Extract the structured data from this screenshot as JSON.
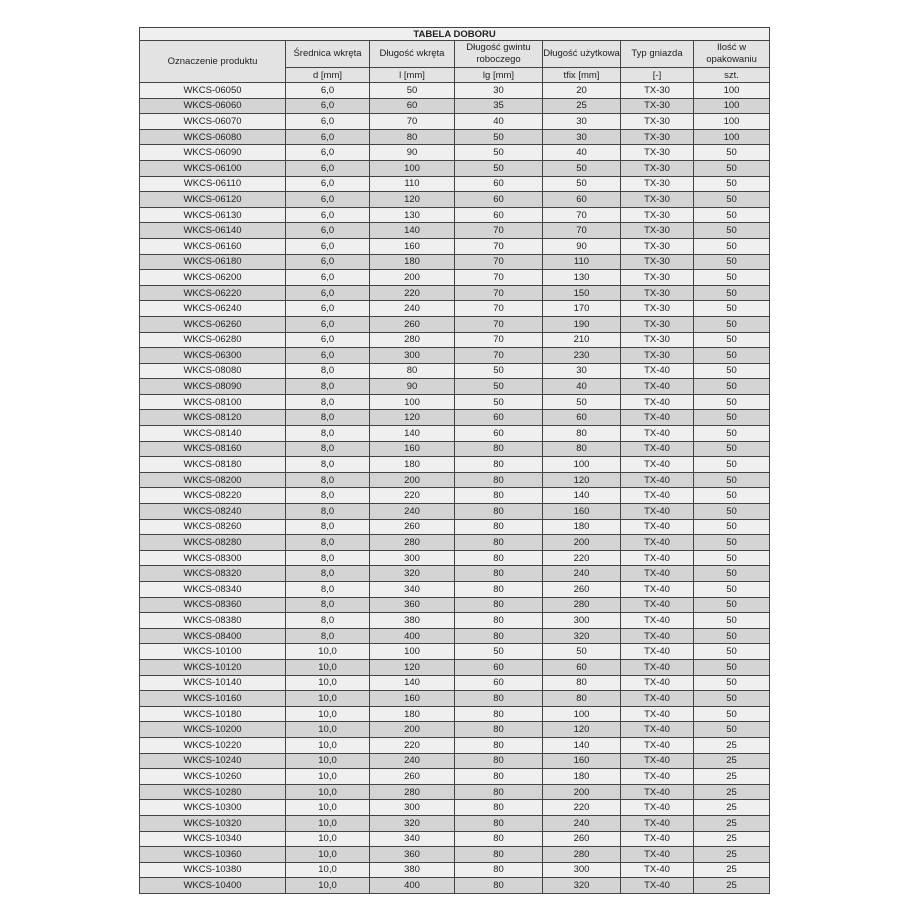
{
  "table": {
    "title": "TABELA DOBORU",
    "headers": [
      "Oznaczenie produktu",
      "Średnica wkręta",
      "Długość wkręta",
      "Długość gwintu roboczego",
      "Długość użytkowa",
      "Typ gniazda",
      "Ilość w opakowaniu"
    ],
    "units": [
      "d [mm]",
      "l [mm]",
      "lg [mm]",
      "tfix [mm]",
      "[-]",
      "szt."
    ],
    "rows": [
      [
        "WKCS-06050",
        "6,0",
        "50",
        "30",
        "20",
        "TX-30",
        "100"
      ],
      [
        "WKCS-06060",
        "6,0",
        "60",
        "35",
        "25",
        "TX-30",
        "100"
      ],
      [
        "WKCS-06070",
        "6,0",
        "70",
        "40",
        "30",
        "TX-30",
        "100"
      ],
      [
        "WKCS-06080",
        "6,0",
        "80",
        "50",
        "30",
        "TX-30",
        "100"
      ],
      [
        "WKCS-06090",
        "6,0",
        "90",
        "50",
        "40",
        "TX-30",
        "50"
      ],
      [
        "WKCS-06100",
        "6,0",
        "100",
        "50",
        "50",
        "TX-30",
        "50"
      ],
      [
        "WKCS-06110",
        "6,0",
        "110",
        "60",
        "50",
        "TX-30",
        "50"
      ],
      [
        "WKCS-06120",
        "6,0",
        "120",
        "60",
        "60",
        "TX-30",
        "50"
      ],
      [
        "WKCS-06130",
        "6,0",
        "130",
        "60",
        "70",
        "TX-30",
        "50"
      ],
      [
        "WKCS-06140",
        "6,0",
        "140",
        "70",
        "70",
        "TX-30",
        "50"
      ],
      [
        "WKCS-06160",
        "6,0",
        "160",
        "70",
        "90",
        "TX-30",
        "50"
      ],
      [
        "WKCS-06180",
        "6,0",
        "180",
        "70",
        "110",
        "TX-30",
        "50"
      ],
      [
        "WKCS-06200",
        "6,0",
        "200",
        "70",
        "130",
        "TX-30",
        "50"
      ],
      [
        "WKCS-06220",
        "6,0",
        "220",
        "70",
        "150",
        "TX-30",
        "50"
      ],
      [
        "WKCS-06240",
        "6,0",
        "240",
        "70",
        "170",
        "TX-30",
        "50"
      ],
      [
        "WKCS-06260",
        "6,0",
        "260",
        "70",
        "190",
        "TX-30",
        "50"
      ],
      [
        "WKCS-06280",
        "6,0",
        "280",
        "70",
        "210",
        "TX-30",
        "50"
      ],
      [
        "WKCS-06300",
        "6,0",
        "300",
        "70",
        "230",
        "TX-30",
        "50"
      ],
      [
        "WKCS-08080",
        "8,0",
        "80",
        "50",
        "30",
        "TX-40",
        "50"
      ],
      [
        "WKCS-08090",
        "8,0",
        "90",
        "50",
        "40",
        "TX-40",
        "50"
      ],
      [
        "WKCS-08100",
        "8,0",
        "100",
        "50",
        "50",
        "TX-40",
        "50"
      ],
      [
        "WKCS-08120",
        "8,0",
        "120",
        "60",
        "60",
        "TX-40",
        "50"
      ],
      [
        "WKCS-08140",
        "8,0",
        "140",
        "60",
        "80",
        "TX-40",
        "50"
      ],
      [
        "WKCS-08160",
        "8,0",
        "160",
        "80",
        "80",
        "TX-40",
        "50"
      ],
      [
        "WKCS-08180",
        "8,0",
        "180",
        "80",
        "100",
        "TX-40",
        "50"
      ],
      [
        "WKCS-08200",
        "8,0",
        "200",
        "80",
        "120",
        "TX-40",
        "50"
      ],
      [
        "WKCS-08220",
        "8,0",
        "220",
        "80",
        "140",
        "TX-40",
        "50"
      ],
      [
        "WKCS-08240",
        "8,0",
        "240",
        "80",
        "160",
        "TX-40",
        "50"
      ],
      [
        "WKCS-08260",
        "8,0",
        "260",
        "80",
        "180",
        "TX-40",
        "50"
      ],
      [
        "WKCS-08280",
        "8,0",
        "280",
        "80",
        "200",
        "TX-40",
        "50"
      ],
      [
        "WKCS-08300",
        "8,0",
        "300",
        "80",
        "220",
        "TX-40",
        "50"
      ],
      [
        "WKCS-08320",
        "8,0",
        "320",
        "80",
        "240",
        "TX-40",
        "50"
      ],
      [
        "WKCS-08340",
        "8,0",
        "340",
        "80",
        "260",
        "TX-40",
        "50"
      ],
      [
        "WKCS-08360",
        "8,0",
        "360",
        "80",
        "280",
        "TX-40",
        "50"
      ],
      [
        "WKCS-08380",
        "8,0",
        "380",
        "80",
        "300",
        "TX-40",
        "50"
      ],
      [
        "WKCS-08400",
        "8,0",
        "400",
        "80",
        "320",
        "TX-40",
        "50"
      ],
      [
        "WKCS-10100",
        "10,0",
        "100",
        "50",
        "50",
        "TX-40",
        "50"
      ],
      [
        "WKCS-10120",
        "10,0",
        "120",
        "60",
        "60",
        "TX-40",
        "50"
      ],
      [
        "WKCS-10140",
        "10,0",
        "140",
        "60",
        "80",
        "TX-40",
        "50"
      ],
      [
        "WKCS-10160",
        "10,0",
        "160",
        "80",
        "80",
        "TX-40",
        "50"
      ],
      [
        "WKCS-10180",
        "10,0",
        "180",
        "80",
        "100",
        "TX-40",
        "50"
      ],
      [
        "WKCS-10200",
        "10,0",
        "200",
        "80",
        "120",
        "TX-40",
        "50"
      ],
      [
        "WKCS-10220",
        "10,0",
        "220",
        "80",
        "140",
        "TX-40",
        "25"
      ],
      [
        "WKCS-10240",
        "10,0",
        "240",
        "80",
        "160",
        "TX-40",
        "25"
      ],
      [
        "WKCS-10260",
        "10,0",
        "260",
        "80",
        "180",
        "TX-40",
        "25"
      ],
      [
        "WKCS-10280",
        "10,0",
        "280",
        "80",
        "200",
        "TX-40",
        "25"
      ],
      [
        "WKCS-10300",
        "10,0",
        "300",
        "80",
        "220",
        "TX-40",
        "25"
      ],
      [
        "WKCS-10320",
        "10,0",
        "320",
        "80",
        "240",
        "TX-40",
        "25"
      ],
      [
        "WKCS-10340",
        "10,0",
        "340",
        "80",
        "260",
        "TX-40",
        "25"
      ],
      [
        "WKCS-10360",
        "10,0",
        "360",
        "80",
        "280",
        "TX-40",
        "25"
      ],
      [
        "WKCS-10380",
        "10,0",
        "380",
        "80",
        "300",
        "TX-40",
        "25"
      ],
      [
        "WKCS-10400",
        "10,0",
        "400",
        "80",
        "320",
        "TX-40",
        "25"
      ]
    ]
  }
}
